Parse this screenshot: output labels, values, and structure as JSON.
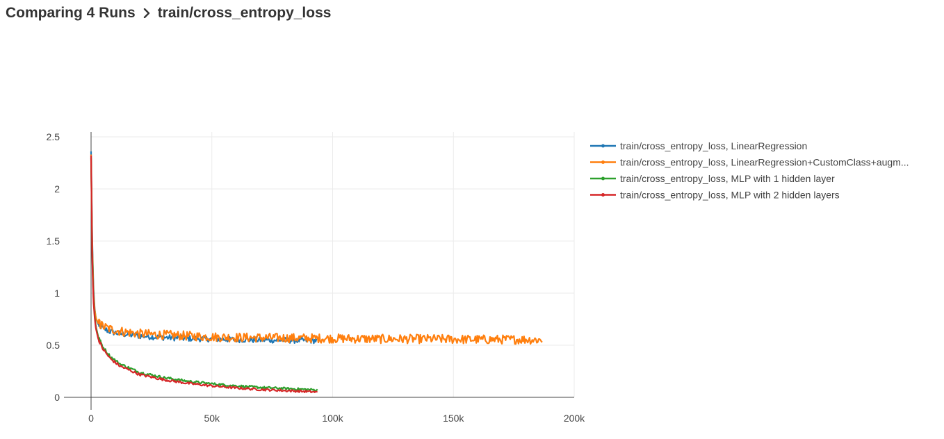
{
  "breadcrumb": {
    "parent": "Comparing 4 Runs",
    "current": "train/cross_entropy_loss"
  },
  "chart_data": {
    "type": "line",
    "x_ticks": [
      0,
      50000,
      100000,
      150000,
      200000
    ],
    "x_tick_labels": [
      "0",
      "50k",
      "100k",
      "150k",
      "200k"
    ],
    "y_ticks": [
      0,
      0.5,
      1,
      1.5,
      2,
      2.5
    ],
    "y_tick_labels": [
      "0",
      "0.5",
      "1",
      "1.5",
      "2",
      "2.5"
    ],
    "xlim": [
      0,
      200000
    ],
    "ylim": [
      0,
      2.5
    ],
    "grid": true,
    "legend_position": "right",
    "series": [
      {
        "name": "train/cross_entropy_loss, LinearRegression",
        "color": "#1f77b4",
        "noise": 0.018,
        "x": [
          0,
          500,
          1000,
          1500,
          2000,
          3000,
          5000,
          8000,
          12000,
          20000,
          30000,
          40000,
          50000,
          60000,
          70000,
          80000,
          90000,
          93500
        ],
        "y": [
          2.36,
          1.5,
          1.05,
          0.85,
          0.76,
          0.7,
          0.66,
          0.63,
          0.61,
          0.59,
          0.575,
          0.565,
          0.56,
          0.555,
          0.55,
          0.548,
          0.545,
          0.545
        ]
      },
      {
        "name": "train/cross_entropy_loss, LinearRegression+CustomClass+augm...",
        "color": "#ff7f0e",
        "noise": 0.028,
        "x": [
          0,
          500,
          1000,
          1500,
          2000,
          3000,
          5000,
          8000,
          12000,
          20000,
          30000,
          40000,
          50000,
          60000,
          80000,
          100000,
          120000,
          140000,
          160000,
          180000,
          187000
        ],
        "y": [
          2.33,
          1.45,
          1.0,
          0.84,
          0.76,
          0.71,
          0.68,
          0.655,
          0.635,
          0.61,
          0.6,
          0.59,
          0.58,
          0.575,
          0.57,
          0.565,
          0.56,
          0.56,
          0.555,
          0.555,
          0.55
        ]
      },
      {
        "name": "train/cross_entropy_loss, MLP with 1 hidden layer",
        "color": "#2ca02c",
        "noise": 0.01,
        "x": [
          0,
          500,
          1000,
          1500,
          2000,
          3000,
          5000,
          8000,
          12000,
          20000,
          30000,
          40000,
          50000,
          60000,
          70000,
          80000,
          90000,
          94000
        ],
        "y": [
          2.3,
          1.35,
          0.95,
          0.78,
          0.68,
          0.58,
          0.48,
          0.39,
          0.32,
          0.24,
          0.19,
          0.155,
          0.13,
          0.11,
          0.095,
          0.085,
          0.075,
          0.07
        ]
      },
      {
        "name": "train/cross_entropy_loss, MLP with 2 hidden layers",
        "color": "#d62728",
        "noise": 0.01,
        "x": [
          0,
          500,
          1000,
          1500,
          2000,
          3000,
          5000,
          8000,
          12000,
          20000,
          30000,
          40000,
          50000,
          60000,
          70000,
          80000,
          90000,
          94000
        ],
        "y": [
          2.32,
          1.3,
          0.92,
          0.76,
          0.66,
          0.56,
          0.46,
          0.37,
          0.3,
          0.22,
          0.17,
          0.135,
          0.11,
          0.09,
          0.075,
          0.065,
          0.055,
          0.05
        ]
      }
    ]
  }
}
